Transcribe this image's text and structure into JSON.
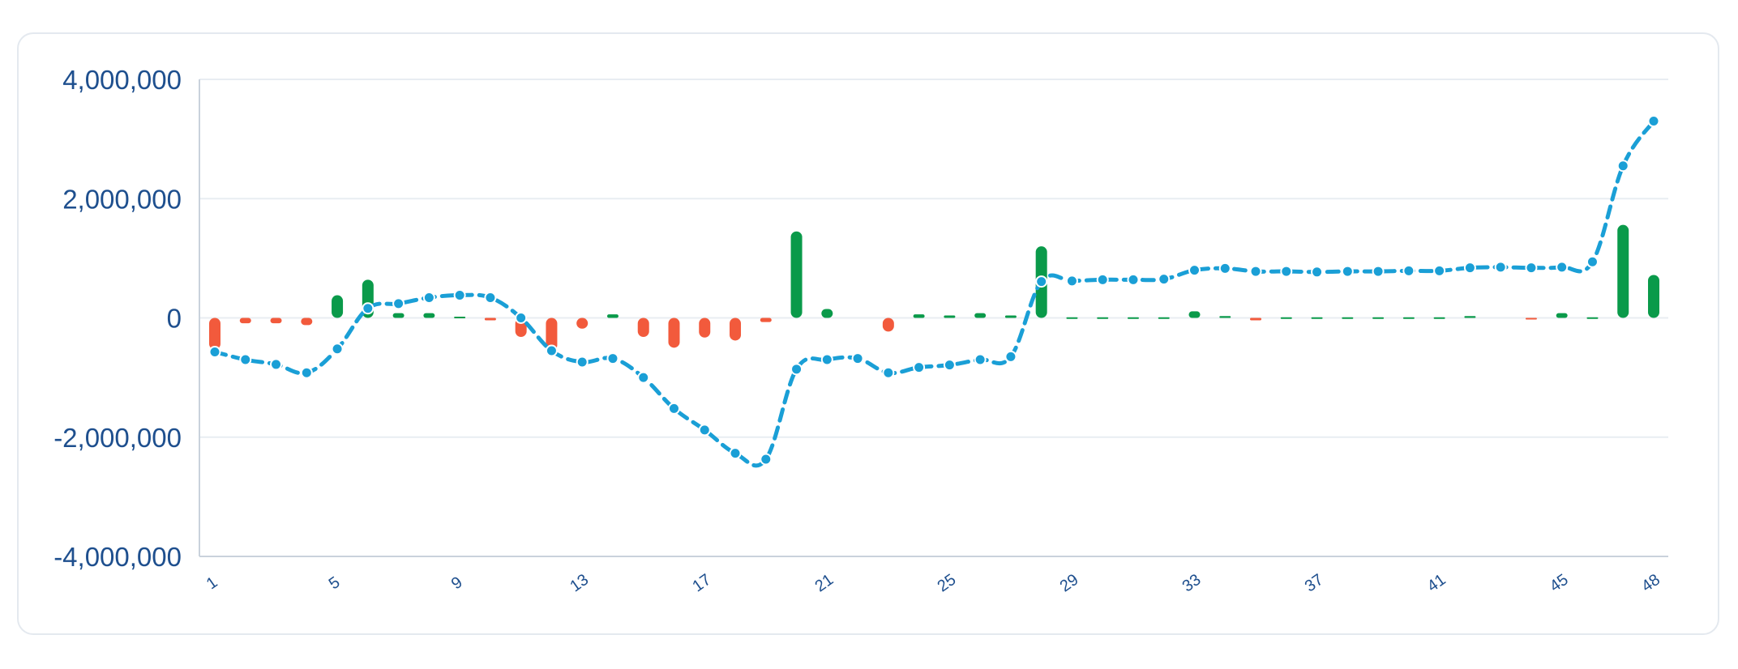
{
  "chart_data": {
    "type": "bar+line",
    "title": "",
    "xlabel": "",
    "ylabel": "",
    "ylim": [
      -4000000,
      4000000
    ],
    "y_ticks": [
      4000000,
      2000000,
      0,
      -2000000,
      -4000000
    ],
    "y_tick_labels": [
      "4,000,000",
      "2,000,000",
      "0",
      "-2,000,000",
      "-4,000,000"
    ],
    "x_tick_labels": [
      "1",
      "5",
      "9",
      "13",
      "17",
      "21",
      "25",
      "29",
      "33",
      "37",
      "41",
      "45",
      "48"
    ],
    "x_tick_values": [
      1,
      5,
      9,
      13,
      17,
      21,
      25,
      29,
      33,
      37,
      41,
      45,
      48
    ],
    "x": [
      1,
      2,
      3,
      4,
      5,
      6,
      7,
      8,
      9,
      10,
      11,
      12,
      13,
      14,
      15,
      16,
      17,
      18,
      19,
      20,
      21,
      22,
      23,
      24,
      25,
      26,
      27,
      28,
      29,
      30,
      31,
      32,
      33,
      34,
      35,
      36,
      37,
      38,
      39,
      40,
      41,
      42,
      43,
      44,
      45,
      46,
      47,
      48
    ],
    "grid": true,
    "legend": "none",
    "colors": {
      "positive_bar": "#0a9a4a",
      "negative_bar": "#f25a3c",
      "line": "#1a9fd6",
      "axis_text": "#1e4f8e",
      "grid": "#e8edf2"
    },
    "series": [
      {
        "type": "bar",
        "values": [
          -530000,
          -90000,
          -90000,
          -120000,
          380000,
          640000,
          80000,
          80000,
          20000,
          -40000,
          -320000,
          -550000,
          -180000,
          60000,
          -320000,
          -500000,
          -330000,
          -380000,
          -70000,
          1450000,
          150000,
          0,
          -230000,
          60000,
          40000,
          80000,
          40000,
          1200000,
          10000,
          10000,
          10000,
          10000,
          110000,
          30000,
          -40000,
          10000,
          10000,
          10000,
          10000,
          10000,
          10000,
          30000,
          0,
          -10000,
          80000,
          10000,
          1560000,
          720000
        ]
      },
      {
        "type": "line",
        "values": [
          -570000,
          -700000,
          -780000,
          -920000,
          -520000,
          160000,
          240000,
          340000,
          380000,
          340000,
          0,
          -550000,
          -740000,
          -680000,
          -1000000,
          -1520000,
          -1880000,
          -2270000,
          -2370000,
          -860000,
          -700000,
          -680000,
          -920000,
          -830000,
          -790000,
          -700000,
          -650000,
          610000,
          620000,
          640000,
          640000,
          650000,
          800000,
          830000,
          780000,
          780000,
          770000,
          780000,
          780000,
          790000,
          790000,
          840000,
          850000,
          840000,
          850000,
          940000,
          2550000,
          3300000
        ]
      }
    ]
  }
}
